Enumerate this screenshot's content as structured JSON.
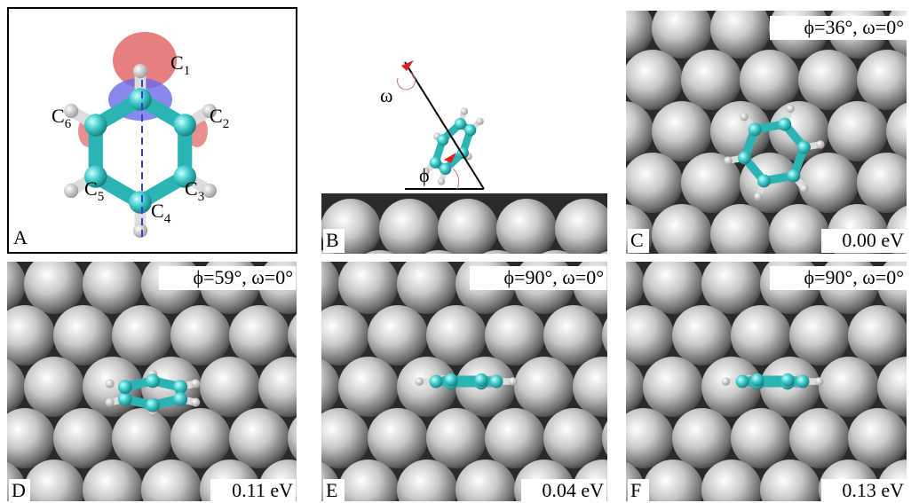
{
  "panels": [
    {
      "label": "A",
      "atoms": [
        {
          "base": "C",
          "sub": "1"
        },
        {
          "base": "C",
          "sub": "2"
        },
        {
          "base": "C",
          "sub": "3"
        },
        {
          "base": "C",
          "sub": "4"
        },
        {
          "base": "C",
          "sub": "5"
        },
        {
          "base": "C",
          "sub": "6"
        }
      ]
    },
    {
      "label": "B",
      "omega": "ω",
      "phi": "ϕ"
    },
    {
      "label": "C",
      "angles": "ϕ=36°,  ω=0°",
      "energy": "0.00 eV"
    },
    {
      "label": "D",
      "angles": "ϕ=59°,  ω=0°",
      "energy": "0.11 eV"
    },
    {
      "label": "E",
      "angles": "ϕ=90°,  ω=0°",
      "energy": "0.04 eV"
    },
    {
      "label": "F",
      "angles": "ϕ=90°,  ω=0°",
      "energy": "0.13 eV"
    }
  ]
}
